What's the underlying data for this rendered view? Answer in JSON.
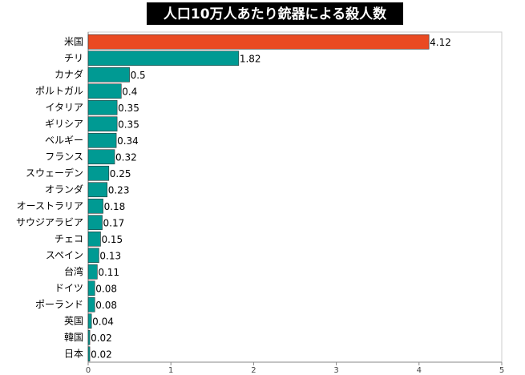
{
  "chart_data": {
    "type": "bar",
    "orientation": "horizontal",
    "title": "人口10万人あたり銃器による殺人数",
    "categories": [
      "米国",
      "チリ",
      "カナダ",
      "ポルトガル",
      "イタリア",
      "ギリシア",
      "ベルギー",
      "フランス",
      "スウェーデン",
      "オランダ",
      "オーストラリア",
      "サウジアラビア",
      "チェコ",
      "スペイン",
      "台湾",
      "ドイツ",
      "ポーランド",
      "英国",
      "韓国",
      "日本"
    ],
    "values": [
      4.12,
      1.82,
      0.5,
      0.4,
      0.35,
      0.35,
      0.34,
      0.32,
      0.25,
      0.23,
      0.18,
      0.17,
      0.15,
      0.13,
      0.11,
      0.08,
      0.08,
      0.04,
      0.02,
      0.02
    ],
    "colors": [
      "#ea4a22",
      "#009a93",
      "#009a93",
      "#009a93",
      "#009a93",
      "#009a93",
      "#009a93",
      "#009a93",
      "#009a93",
      "#009a93",
      "#009a93",
      "#009a93",
      "#009a93",
      "#009a93",
      "#009a93",
      "#009a93",
      "#009a93",
      "#009a93",
      "#009a93",
      "#009a93"
    ],
    "xlim": [
      0,
      5
    ],
    "xticks": [
      0,
      1,
      2,
      3,
      4,
      5
    ]
  }
}
